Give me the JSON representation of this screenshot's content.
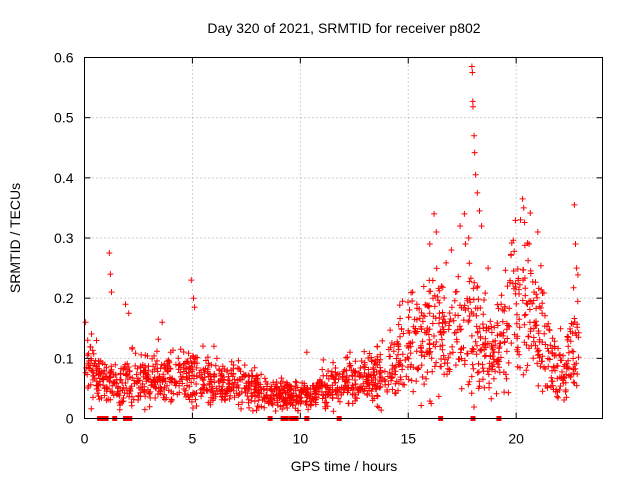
{
  "chart_data": {
    "type": "scatter",
    "title": "Day 320 of 2021, SRMTID for receiver p802",
    "xlabel": "GPS time / hours",
    "ylabel": "SRMTID / TECUs",
    "xlim": [
      0,
      24
    ],
    "ylim": [
      0,
      0.6
    ],
    "xticks": [
      0,
      5,
      10,
      15,
      20
    ],
    "xtick_labels": [
      "0",
      "5",
      "10",
      "15",
      "20"
    ],
    "yticks": [
      0,
      0.1,
      0.2,
      0.3,
      0.4,
      0.5,
      0.6
    ],
    "ytick_labels": [
      "0",
      "0.1",
      "0.2",
      "0.3",
      "0.4",
      "0.5",
      "0.6"
    ],
    "grid": true,
    "marker": "plus",
    "color": "#ff0000",
    "profile": [
      [
        0.0,
        0.095
      ],
      [
        0.5,
        0.075
      ],
      [
        1.0,
        0.06
      ],
      [
        1.5,
        0.055
      ],
      [
        2.0,
        0.07
      ],
      [
        2.5,
        0.065
      ],
      [
        3.0,
        0.06
      ],
      [
        3.5,
        0.07
      ],
      [
        4.0,
        0.075
      ],
      [
        4.5,
        0.07
      ],
      [
        5.0,
        0.07
      ],
      [
        5.5,
        0.07
      ],
      [
        6.0,
        0.06
      ],
      [
        6.5,
        0.055
      ],
      [
        7.0,
        0.06
      ],
      [
        7.5,
        0.05
      ],
      [
        8.0,
        0.045
      ],
      [
        8.5,
        0.04
      ],
      [
        9.0,
        0.04
      ],
      [
        9.5,
        0.038
      ],
      [
        10.0,
        0.04
      ],
      [
        10.5,
        0.035
      ],
      [
        11.0,
        0.05
      ],
      [
        11.5,
        0.055
      ],
      [
        12.0,
        0.06
      ],
      [
        12.5,
        0.06
      ],
      [
        13.0,
        0.065
      ],
      [
        13.5,
        0.07
      ],
      [
        14.0,
        0.08
      ],
      [
        14.5,
        0.1
      ],
      [
        15.0,
        0.12
      ],
      [
        15.5,
        0.13
      ],
      [
        16.0,
        0.15
      ],
      [
        16.5,
        0.14
      ],
      [
        17.0,
        0.13
      ],
      [
        17.5,
        0.14
      ],
      [
        18.0,
        0.16
      ],
      [
        18.5,
        0.12
      ],
      [
        19.0,
        0.1
      ],
      [
        19.5,
        0.15
      ],
      [
        20.0,
        0.2
      ],
      [
        20.5,
        0.2
      ],
      [
        21.0,
        0.15
      ],
      [
        21.5,
        0.1
      ],
      [
        22.0,
        0.08
      ],
      [
        22.5,
        0.1
      ],
      [
        22.9,
        0.15
      ]
    ],
    "peaks": [
      [
        0.05,
        0.16
      ],
      [
        0.15,
        0.13
      ],
      [
        1.15,
        0.275
      ],
      [
        1.2,
        0.24
      ],
      [
        1.25,
        0.21
      ],
      [
        1.9,
        0.19
      ],
      [
        2.05,
        0.175
      ],
      [
        3.6,
        0.16
      ],
      [
        4.0,
        0.11
      ],
      [
        4.95,
        0.23
      ],
      [
        5.05,
        0.2
      ],
      [
        5.1,
        0.185
      ],
      [
        6.0,
        0.12
      ],
      [
        10.3,
        0.11
      ],
      [
        12.3,
        0.11
      ],
      [
        15.2,
        0.21
      ],
      [
        15.4,
        0.19
      ],
      [
        16.0,
        0.29
      ],
      [
        16.2,
        0.34
      ],
      [
        16.3,
        0.31
      ],
      [
        17.0,
        0.28
      ],
      [
        17.4,
        0.32
      ],
      [
        17.6,
        0.34
      ],
      [
        17.65,
        0.29
      ],
      [
        17.8,
        0.3
      ],
      [
        17.95,
        0.585
      ],
      [
        17.97,
        0.575
      ],
      [
        17.99,
        0.527
      ],
      [
        18.0,
        0.518
      ],
      [
        18.05,
        0.47
      ],
      [
        18.08,
        0.442
      ],
      [
        18.12,
        0.405
      ],
      [
        18.2,
        0.375
      ],
      [
        18.3,
        0.345
      ],
      [
        18.4,
        0.32
      ],
      [
        18.7,
        0.25
      ],
      [
        19.3,
        0.19
      ],
      [
        20.2,
        0.33
      ],
      [
        20.3,
        0.365
      ],
      [
        20.35,
        0.35
      ],
      [
        20.6,
        0.29
      ],
      [
        21.0,
        0.31
      ],
      [
        22.7,
        0.355
      ],
      [
        22.75,
        0.29
      ],
      [
        22.8,
        0.25
      ]
    ],
    "gap_markers_x": [
      0.7,
      0.85,
      1.0,
      1.4,
      1.9,
      2.1,
      8.6,
      9.2,
      9.35,
      9.6,
      9.8,
      10.3,
      11.8,
      16.5,
      18.0,
      19.2
    ]
  }
}
